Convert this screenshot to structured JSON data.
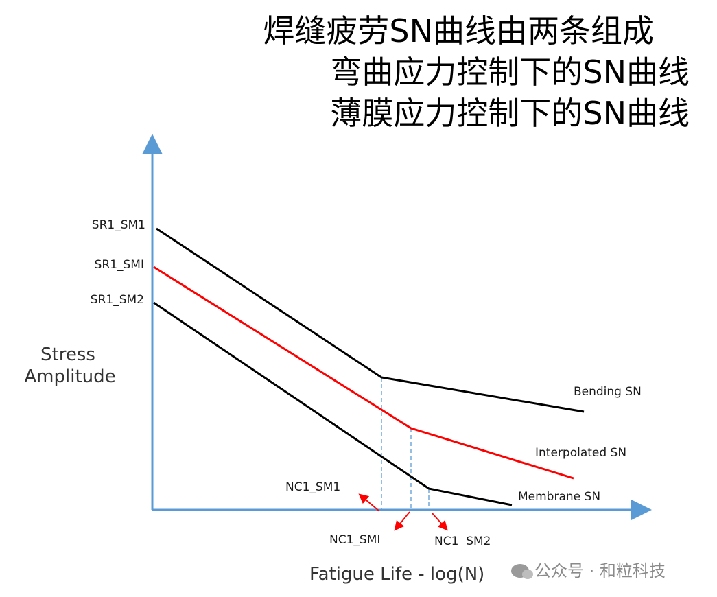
{
  "title": {
    "line1": "焊缝疲劳SN曲线由两条组成",
    "line2": "弯曲应力控制下的SN曲线",
    "line3": "薄膜应力控制下的SN曲线"
  },
  "y_axis": {
    "label_line1": "Stress",
    "label_line2": "Amplitude",
    "ticks": [
      "SR1_SM1",
      "SR1_SMI",
      "SR1_SM2"
    ]
  },
  "x_axis": {
    "label": "Fatigue Life - log(N)",
    "markers": [
      "NC1_SM1",
      "NC1_SMI",
      "NC1  SM2"
    ]
  },
  "curves": [
    {
      "name": "Bending SN",
      "color": "#000000"
    },
    {
      "name": "Interpolated SN",
      "color": "#ff0000"
    },
    {
      "name": "Membrane SN",
      "color": "#000000"
    }
  ],
  "colors": {
    "axis": "#5b9bd5",
    "dashed": "#5b9bd5",
    "arrow": "#ff0000"
  },
  "watermark": "公众号 · 和粒科技"
}
